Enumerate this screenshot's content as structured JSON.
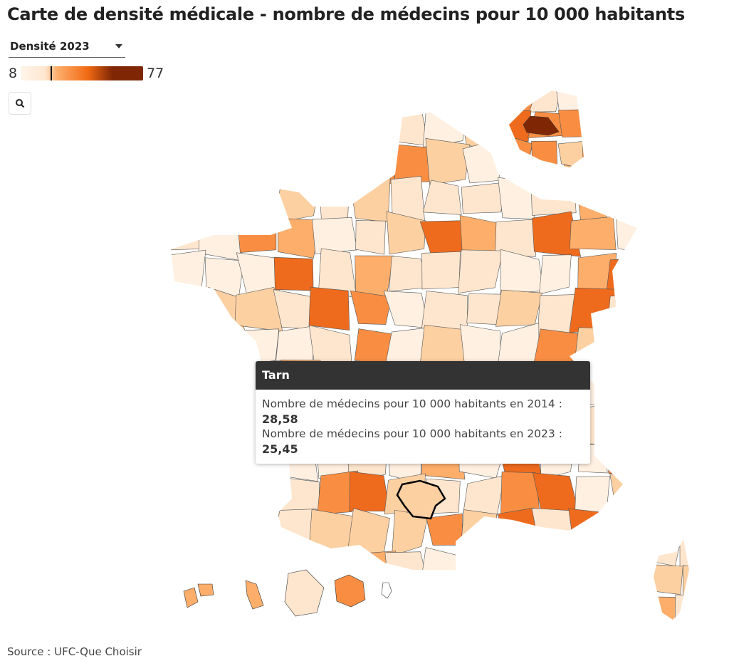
{
  "title": "Carte de densité médicale - nombre de médecins pour 10 000 habitants",
  "selector": {
    "selected": "Densité 2023"
  },
  "legend": {
    "min": "8",
    "max": "77",
    "marker_value": 25.45
  },
  "colors": {
    "scale": [
      "#fff0e1",
      "#fee6ce",
      "#fdd0a2",
      "#fdae6b",
      "#f98e43",
      "#ee6b1e",
      "#c94f0a",
      "#7f2704"
    ],
    "highlight_stroke": "#000000"
  },
  "zoom_button": {
    "icon": "search-icon"
  },
  "tooltip": {
    "title": "Tarn",
    "label_2014": "Nombre de médecins pour 10 000 habitants en 2014 :",
    "value_2014": "28,58",
    "label_2023": "Nombre de médecins pour 10 000 habitants en 2023 :",
    "value_2023": "25,45"
  },
  "source": "Source : UFC-Que Choisir"
}
